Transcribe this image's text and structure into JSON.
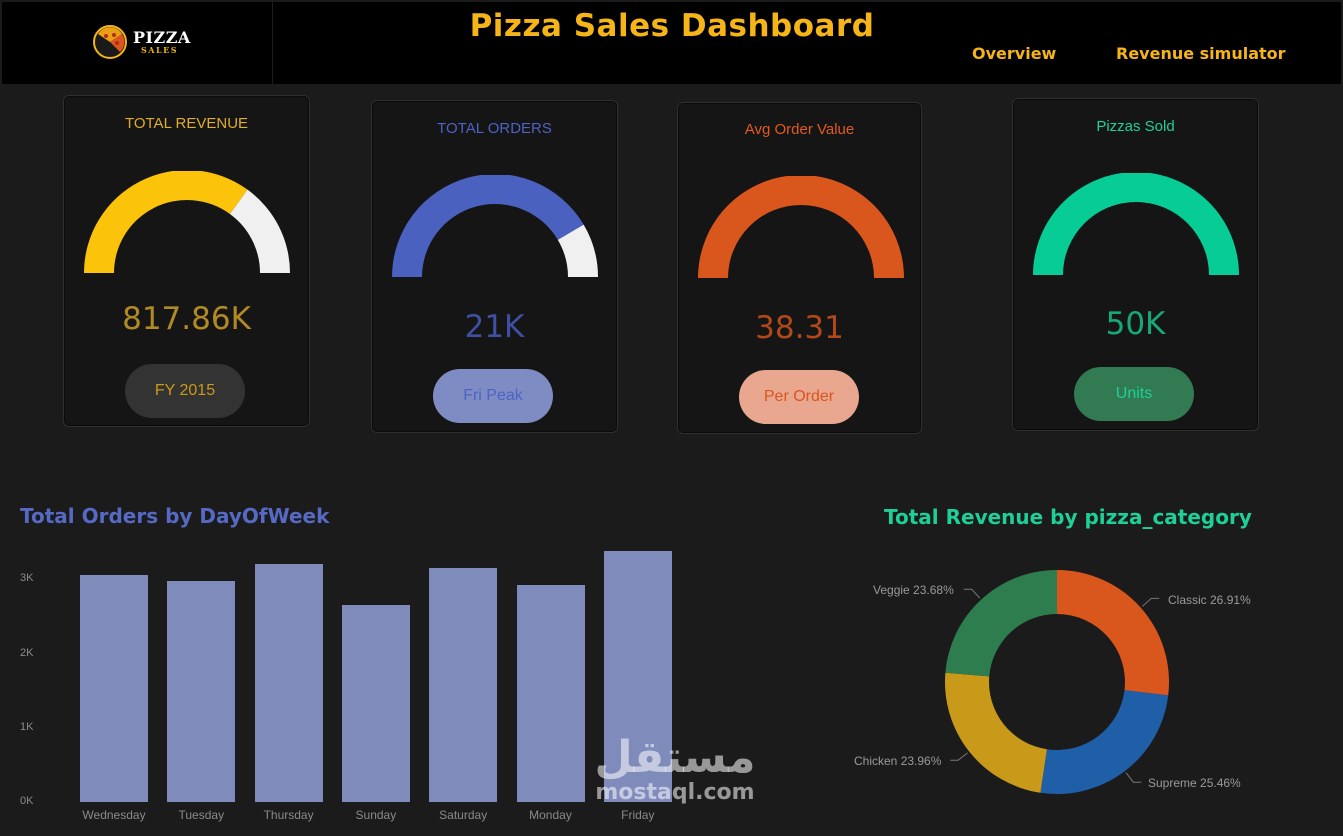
{
  "header": {
    "logo_line1": "PIZZA",
    "logo_line2": "SALES",
    "title": "Pizza Sales Dashboard",
    "nav": [
      "Overview",
      "Revenue simulator"
    ]
  },
  "colors": {
    "accent": "#f5b417",
    "revenue": "#fcc30b",
    "orders": "#4a61c0",
    "avg_order": "#d9561c",
    "pizzas": "#08cc95",
    "gauge_remainder": "#f0f0f0"
  },
  "kpis": [
    {
      "title": "TOTAL REVENUE",
      "value": "817.86K",
      "pill": "FY 2015",
      "gauge_fill_fraction": 0.7
    },
    {
      "title": "TOTAL ORDERS",
      "value": "21K",
      "pill": "Fri Peak",
      "gauge_fill_fraction": 0.83
    },
    {
      "title": "Avg Order Value",
      "value": "38.31",
      "pill": "Per Order",
      "gauge_fill_fraction": 1.0
    },
    {
      "title": "Pizzas Sold",
      "value": "50K",
      "pill": "Units",
      "gauge_fill_fraction": 1.0
    }
  ],
  "bar_section": {
    "title": "Total Orders by DayOfWeek"
  },
  "donut_section": {
    "title": "Total Revenue by pizza_category"
  },
  "chart_data": [
    {
      "type": "bar",
      "title": "Total Orders by DayOfWeek",
      "categories": [
        "Wednesday",
        "Tuesday",
        "Thursday",
        "Sunday",
        "Saturday",
        "Monday",
        "Friday"
      ],
      "values": [
        3024,
        2945,
        3170,
        2624,
        3119,
        2894,
        3350
      ],
      "ylim": [
        0,
        3500
      ],
      "yticks": [
        "0K",
        "1K",
        "2K",
        "3K"
      ],
      "grid": false
    },
    {
      "type": "pie",
      "title": "Total Revenue by pizza_category",
      "categories": [
        "Classic",
        "Supreme",
        "Chicken",
        "Veggie"
      ],
      "values": [
        26.91,
        25.46,
        23.96,
        23.68
      ],
      "labels": [
        "Classic 26.91%",
        "Supreme 25.46%",
        "Chicken 23.96%",
        "Veggie 23.68%"
      ],
      "colors": [
        "#d9561c",
        "#1f5fa8",
        "#c99a1a",
        "#2e7d4f"
      ]
    }
  ],
  "watermark": {
    "arabic": "مستقل",
    "latin": "mostaql.com"
  }
}
